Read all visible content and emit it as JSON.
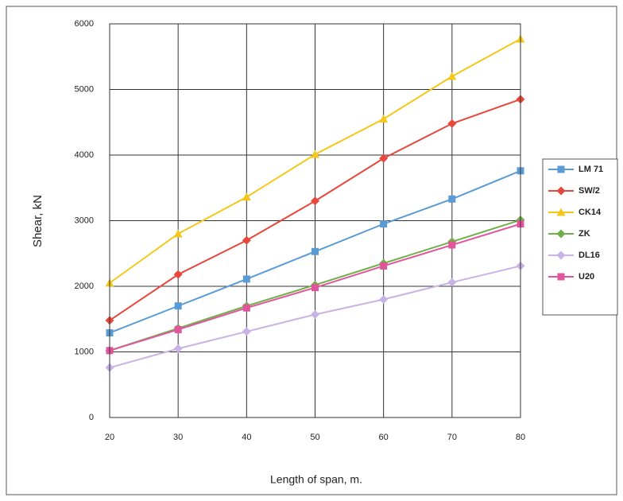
{
  "chart_data": {
    "type": "line",
    "x_label": "Length of span, m.",
    "y_label": "Shear, kN",
    "x": [
      20,
      30,
      40,
      50,
      60,
      70,
      80
    ],
    "xlim": [
      20,
      80
    ],
    "xticks": [
      20,
      30,
      40,
      50,
      60,
      70,
      80
    ],
    "ylim": [
      0,
      6000
    ],
    "yticks": [
      0,
      1000,
      2000,
      3000,
      4000,
      5000,
      6000
    ],
    "grid": true,
    "legend": "right",
    "series": [
      {
        "name": "LM 71",
        "color": "#5b9bd5",
        "marker": "square",
        "values": [
          1290,
          1700,
          2110,
          2530,
          2950,
          3330,
          3760
        ]
      },
      {
        "name": "SW/2",
        "color": "#e8473b",
        "marker": "diamond",
        "values": [
          1480,
          2180,
          2700,
          3300,
          3950,
          4480,
          4850
        ]
      },
      {
        "name": "CK14",
        "color": "#f5c71a",
        "marker": "triangle",
        "values": [
          2050,
          2800,
          3360,
          4010,
          4550,
          5200,
          5770
        ]
      },
      {
        "name": "ZK",
        "color": "#6fb04a",
        "marker": "diamond",
        "values": [
          1020,
          1360,
          1700,
          2020,
          2350,
          2680,
          3010
        ]
      },
      {
        "name": "DL16",
        "color": "#c9b3e6",
        "marker": "diamond",
        "values": [
          760,
          1050,
          1310,
          1570,
          1800,
          2060,
          2310
        ]
      },
      {
        "name": "U20",
        "color": "#e0559b",
        "marker": "square",
        "values": [
          1020,
          1340,
          1670,
          1980,
          2310,
          2630,
          2950
        ]
      }
    ]
  }
}
